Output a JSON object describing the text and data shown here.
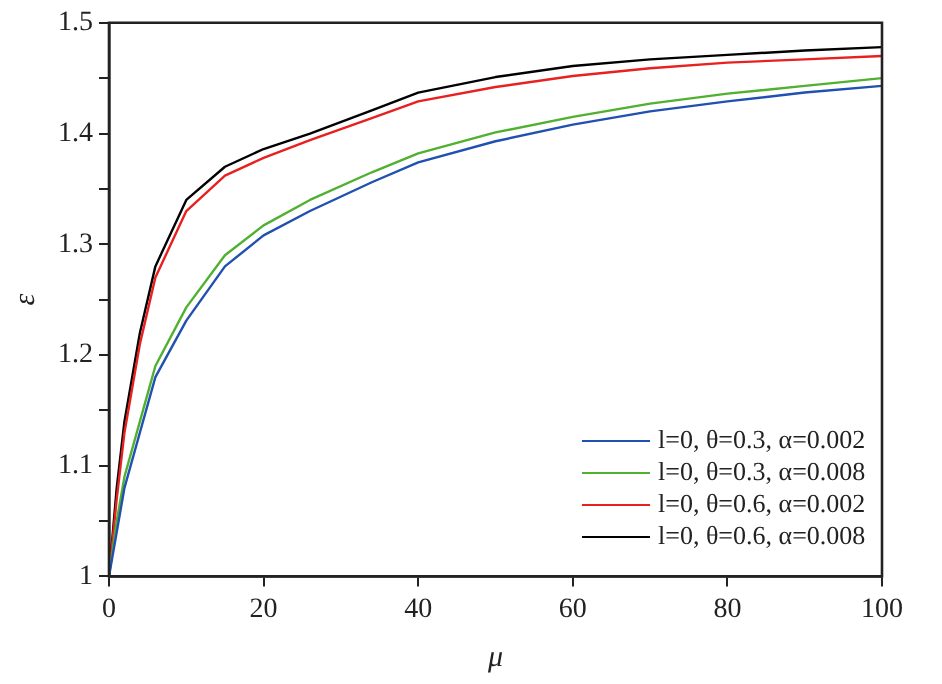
{
  "chart_data": {
    "type": "line",
    "xlabel": "μ",
    "ylabel": "ε",
    "x": [
      0,
      1,
      2,
      4,
      6,
      10,
      15,
      20,
      26,
      34,
      40,
      50,
      60,
      70,
      80,
      90,
      100
    ],
    "series": [
      {
        "name": "l=0, θ=0.3, α=0.002",
        "color": "#2050b0",
        "values": [
          1,
          1.04,
          1.08,
          1.13,
          1.18,
          1.231,
          1.28,
          1.308,
          1.33,
          1.356,
          1.374,
          1.393,
          1.408,
          1.42,
          1.429,
          1.437,
          1.443
        ]
      },
      {
        "name": "l=0, θ=0.3, α=0.008",
        "color": "#50b030",
        "values": [
          1,
          1.05,
          1.09,
          1.14,
          1.19,
          1.243,
          1.29,
          1.317,
          1.34,
          1.365,
          1.382,
          1.401,
          1.415,
          1.427,
          1.436,
          1.443,
          1.45
        ]
      },
      {
        "name": "l=0, θ=0.6, α=0.002",
        "color": "#e82020",
        "values": [
          1,
          1.07,
          1.13,
          1.21,
          1.27,
          1.33,
          1.362,
          1.378,
          1.394,
          1.414,
          1.429,
          1.442,
          1.452,
          1.459,
          1.464,
          1.467,
          1.47
        ]
      },
      {
        "name": "l=0, θ=0.6, α=0.008",
        "color": "#000000",
        "values": [
          1,
          1.08,
          1.14,
          1.22,
          1.28,
          1.34,
          1.37,
          1.386,
          1.4,
          1.421,
          1.437,
          1.451,
          1.461,
          1.467,
          1.471,
          1.475,
          1.478
        ]
      }
    ],
    "xlim": [
      0,
      100
    ],
    "xticks": [
      0,
      20,
      40,
      60,
      80,
      100
    ],
    "ylim": [
      1,
      1.5
    ],
    "yticks": [
      1,
      {
        "value": 1.05,
        "label": null
      },
      1.1,
      {
        "value": 1.15,
        "label": null
      },
      1.2,
      {
        "value": 1.25,
        "label": null
      },
      1.3,
      {
        "value": 1.35,
        "label": null
      },
      1.4,
      {
        "value": 1.45,
        "label": null
      },
      1.5
    ],
    "grid": false,
    "legend": "bottom right",
    "marker": "none",
    "line_style": "solid"
  }
}
